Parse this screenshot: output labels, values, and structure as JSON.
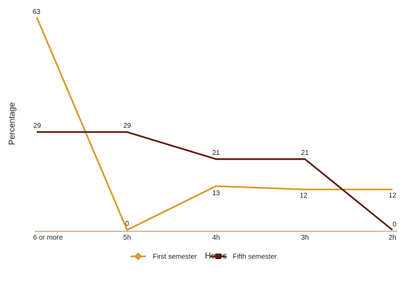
{
  "chart_data": {
    "type": "line",
    "title": "",
    "xlabel": "Hours",
    "ylabel": "Percentage",
    "categories": [
      "6 or more",
      "5h",
      "4h",
      "3h",
      "2h"
    ],
    "ylim": [
      0,
      63
    ],
    "grid": false,
    "legend": "bottom",
    "series": [
      {
        "name": "First semester",
        "values": [
          63,
          0,
          13,
          12,
          12
        ],
        "color": "#D89A2E"
      },
      {
        "name": "Fifth semester",
        "values": [
          29,
          29,
          21,
          21,
          0
        ],
        "color": "#5A1A0A"
      }
    ],
    "axis_color": "#B07A5A"
  }
}
